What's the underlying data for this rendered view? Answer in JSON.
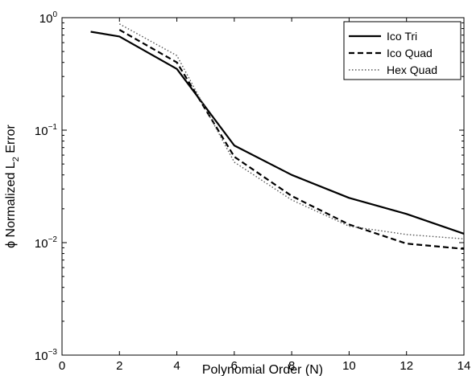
{
  "chart_data": {
    "type": "line",
    "title": "",
    "xlabel": "Polynomial Order (N)",
    "ylabel_prefix": "ϕ Normalized L",
    "ylabel_subscript": "2",
    "ylabel_suffix": " Error",
    "xlim": [
      0,
      14
    ],
    "ylim": [
      0.001,
      1
    ],
    "yscale": "log",
    "grid": false,
    "legend_position": "top-right",
    "xticks": [
      0,
      2,
      4,
      6,
      8,
      10,
      12,
      14
    ],
    "yticks": [
      {
        "value": 0.001,
        "base": "10",
        "exp": "−3"
      },
      {
        "value": 0.01,
        "base": "10",
        "exp": "−2"
      },
      {
        "value": 0.1,
        "base": "10",
        "exp": "−1"
      },
      {
        "value": 1,
        "base": "10",
        "exp": "0"
      }
    ],
    "series": [
      {
        "name": "Ico Tri",
        "style": "solid",
        "color": "#000000",
        "x": [
          1,
          2,
          4,
          6,
          8,
          10,
          12,
          14
        ],
        "y": [
          0.75,
          0.68,
          0.35,
          0.073,
          0.04,
          0.025,
          0.018,
          0.012
        ]
      },
      {
        "name": "Ico Quad",
        "style": "dashed",
        "color": "#000000",
        "x": [
          2,
          4,
          6,
          8,
          10,
          12,
          14
        ],
        "y": [
          0.78,
          0.4,
          0.058,
          0.026,
          0.0145,
          0.0098,
          0.0088
        ]
      },
      {
        "name": "Hex Quad",
        "style": "dotted",
        "color": "#000000",
        "x": [
          2,
          4,
          6,
          8,
          10,
          12,
          14
        ],
        "y": [
          0.88,
          0.46,
          0.052,
          0.024,
          0.014,
          0.0118,
          0.0108
        ]
      }
    ]
  }
}
